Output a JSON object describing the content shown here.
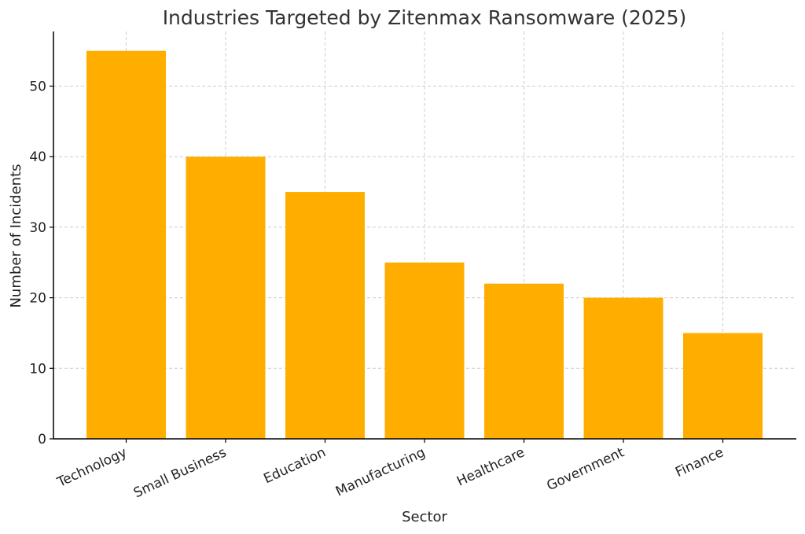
{
  "chart_data": {
    "type": "bar",
    "title": "Industries Targeted by Zitenmax Ransomware (2025)",
    "xlabel": "Sector",
    "ylabel": "Number of Incidents",
    "categories": [
      "Technology",
      "Small Business",
      "Education",
      "Manufacturing",
      "Healthcare",
      "Government",
      "Finance"
    ],
    "values": [
      55,
      40,
      35,
      25,
      22,
      20,
      15
    ],
    "yticks": [
      0,
      10,
      20,
      30,
      40,
      50
    ],
    "ylim": [
      0,
      57.75
    ],
    "grid": true,
    "bar_color": "#FFAE00"
  }
}
